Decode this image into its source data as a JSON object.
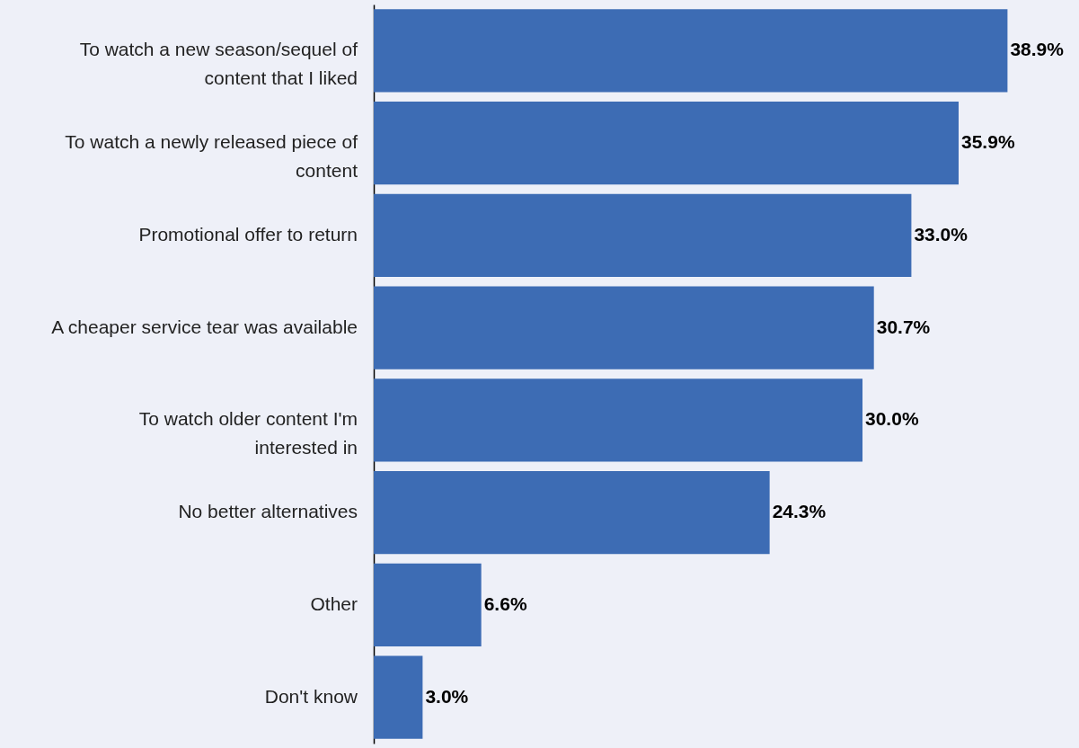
{
  "chart_data": {
    "type": "bar",
    "orientation": "horizontal",
    "color": "#3d6cb4",
    "categories": [
      "To watch a new season/sequel of content that I liked",
      "To watch a newly released piece of content",
      "Promotional offer to return",
      "A cheaper service tear was available",
      "To watch older content I'm interested in",
      "No better alternatives",
      "Other",
      "Don't know"
    ],
    "values": [
      38.9,
      35.9,
      33.0,
      30.7,
      30.0,
      24.3,
      6.6,
      3.0
    ],
    "value_labels": [
      "38.9%",
      "35.9%",
      "33.0%",
      "30.7%",
      "30.0%",
      "24.3%",
      "6.6%",
      "3.0%"
    ]
  }
}
